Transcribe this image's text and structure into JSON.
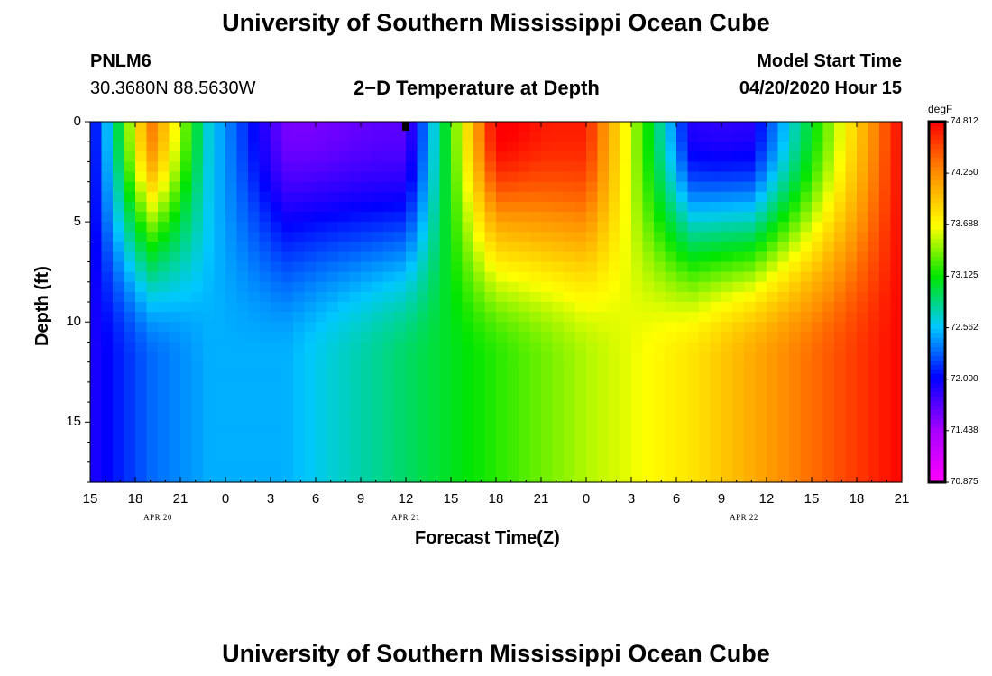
{
  "title_top": "University of Southern Mississippi Ocean Cube",
  "title_bottom": "University of Southern Mississippi Ocean Cube",
  "station": "PNLM6",
  "location": "30.3680N 88.5630W",
  "plot_title": "2−D Temperature at Depth",
  "model_start_label": "Model Start Time",
  "model_start_value": "04/20/2020 Hour 15",
  "colorbar_unit": "degF",
  "chart_data": {
    "type": "heatmap",
    "title": "2−D Temperature at Depth",
    "xlabel": "Forecast Time(Z)",
    "ylabel": "Depth (ft)",
    "x_hours": [
      0,
      3,
      6,
      9,
      12,
      15,
      18,
      21,
      24,
      27,
      30,
      33,
      36,
      39,
      42,
      45,
      48,
      51,
      54
    ],
    "x_tick_labels": [
      "15",
      "18",
      "21",
      "0",
      "3",
      "6",
      "9",
      "12",
      "15",
      "18",
      "21",
      "0",
      "3",
      "6",
      "9",
      "12",
      "15",
      "18",
      "21"
    ],
    "date_labels": [
      {
        "text": "APR  20",
        "hour": 4.5
      },
      {
        "text": "APR  21",
        "hour": 21
      },
      {
        "text": "APR  22",
        "hour": 43.5
      }
    ],
    "xlim": [
      0,
      54
    ],
    "y_ticks": [
      0,
      5,
      10,
      15
    ],
    "y_tick_labels": [
      "0",
      "5",
      "10",
      "15"
    ],
    "ylim": [
      0,
      18
    ],
    "y_inverted": true,
    "colorbar": {
      "unit": "degF",
      "min": 70.875,
      "max": 74.812,
      "tick_labels": [
        "74.812",
        "74.250",
        "73.688",
        "73.125",
        "72.562",
        "72.000",
        "71.438",
        "70.875"
      ],
      "tick_values": [
        74.812,
        74.25,
        73.688,
        73.125,
        72.562,
        72.0,
        71.438,
        70.875
      ],
      "scale": "rainbow: magenta → purple → blue → cyan → green → yellow → orange → red"
    },
    "current_time_marker_hour": 21,
    "temperature_profile_description": [
      {
        "hour": 0,
        "surface": 71.9,
        "bottom": 71.9
      },
      {
        "hour": 4,
        "surface": 74.1,
        "bottom": 72.3
      },
      {
        "hour": 8,
        "surface": 72.6,
        "bottom": 72.5
      },
      {
        "hour": 13,
        "surface": 71.7,
        "bottom": 72.5
      },
      {
        "hour": 21,
        "surface": 71.7,
        "bottom": 72.9
      },
      {
        "hour": 27,
        "surface": 74.7,
        "bottom": 73.2
      },
      {
        "hour": 33,
        "surface": 74.7,
        "bottom": 73.5
      },
      {
        "hour": 40,
        "surface": 72.0,
        "bottom": 73.8
      },
      {
        "hour": 44,
        "surface": 71.9,
        "bottom": 74.1
      },
      {
        "hour": 54,
        "surface": 74.8,
        "bottom": 74.8
      }
    ]
  }
}
